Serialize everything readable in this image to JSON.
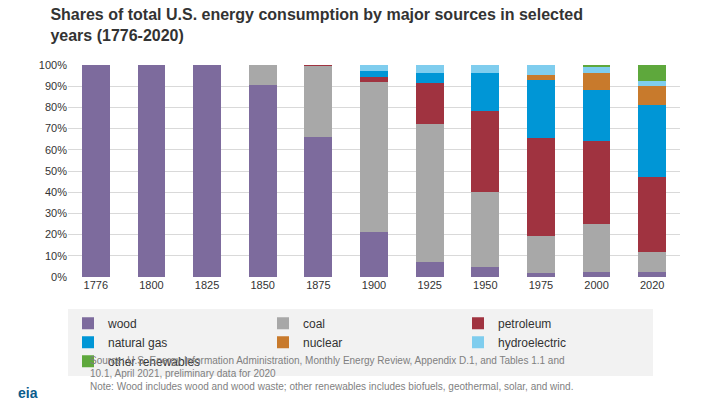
{
  "chart_data": {
    "type": "bar",
    "title": "Shares of total U.S. energy consumption by major sources in selected years (1776-2020)",
    "categories": [
      "1776",
      "1800",
      "1825",
      "1850",
      "1875",
      "1900",
      "1925",
      "1950",
      "1975",
      "2000",
      "2020"
    ],
    "series": [
      {
        "name": "wood",
        "color": "#7d6b9d",
        "values": [
          100,
          100,
          100,
          90.5,
          66,
          21,
          7,
          4.5,
          2,
          2.5,
          2.5
        ]
      },
      {
        "name": "coal",
        "color": "#a8a8a8",
        "values": [
          0,
          0,
          0,
          9.5,
          33.5,
          71,
          65,
          35.5,
          17.5,
          22.5,
          9.5
        ]
      },
      {
        "name": "petroleum",
        "color": "#a03340",
        "values": [
          0,
          0,
          0,
          0,
          0.5,
          2.5,
          19.5,
          38.5,
          46,
          39,
          35
        ]
      },
      {
        "name": "natural gas",
        "color": "#0096d6",
        "values": [
          0,
          0,
          0,
          0,
          0,
          2.5,
          4.5,
          17.5,
          27.5,
          24,
          34
        ]
      },
      {
        "name": "nuclear",
        "color": "#c87a2c",
        "values": [
          0,
          0,
          0,
          0,
          0,
          0,
          0,
          0,
          2.5,
          8,
          9
        ]
      },
      {
        "name": "hydroelectric",
        "color": "#7fcdee",
        "values": [
          0,
          0,
          0,
          0,
          0,
          3,
          4,
          4,
          4.5,
          3,
          2.5
        ]
      },
      {
        "name": "other renewables",
        "color": "#5ea83c",
        "values": [
          0,
          0,
          0,
          0,
          0,
          0,
          0,
          0,
          0,
          1,
          7.5
        ]
      }
    ],
    "ylim": [
      0,
      100
    ],
    "yticks": [
      {
        "value": 0,
        "label": "0%"
      },
      {
        "value": 10,
        "label": "10%"
      },
      {
        "value": 20,
        "label": "20%"
      },
      {
        "value": 30,
        "label": "30%"
      },
      {
        "value": 40,
        "label": "40%"
      },
      {
        "value": 50,
        "label": "50%"
      },
      {
        "value": 60,
        "label": "60%"
      },
      {
        "value": 70,
        "label": "70%"
      },
      {
        "value": 80,
        "label": "80%"
      },
      {
        "value": 90,
        "label": "90%"
      },
      {
        "value": 100,
        "label": "100%"
      }
    ],
    "stacked": true,
    "grid": true,
    "legend": "bottom",
    "source": [
      "Source: U.S. Energy Information Administration, Monthly Energy Review, Appendix D.1, and Tables 1.1 and",
      "10.1, April 2021, preliminary data for 2020"
    ],
    "note": "Note: Wood includes wood and wood waste; other renewables includes biofuels, geothermal, solar, and wind.",
    "logo": "eia"
  }
}
